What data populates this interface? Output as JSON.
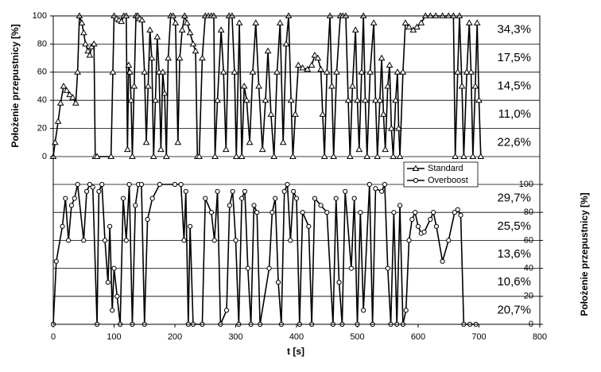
{
  "chart_data": [
    {
      "type": "line",
      "ylabel": "Położenie przepustnicy [%]",
      "ylim": [
        0,
        100
      ],
      "yticks": [
        0,
        20,
        40,
        60,
        80,
        100
      ],
      "xlim": [
        0,
        800
      ],
      "grid": true,
      "annotations": [
        "34,3%",
        "17,5%",
        "14,5%",
        "11,0%",
        "22,6%"
      ],
      "series": [
        {
          "name": "Standard",
          "color": "#000000",
          "marker": "triangle",
          "x": [
            0,
            3,
            8,
            12,
            17,
            22,
            27,
            32,
            37,
            40,
            43,
            47,
            50,
            53,
            57,
            60,
            63,
            67,
            69,
            72,
            95,
            98,
            100,
            104,
            108,
            112,
            116,
            120,
            122,
            124,
            126,
            128,
            130,
            133,
            136,
            139,
            142,
            146,
            150,
            153,
            156,
            159,
            162,
            165,
            168,
            171,
            174,
            177,
            180,
            183,
            186,
            189,
            193,
            197,
            201,
            205,
            208,
            212,
            216,
            220,
            225,
            230,
            234,
            237,
            240,
            245,
            250,
            255,
            260,
            264,
            266,
            270,
            276,
            280,
            284,
            289,
            294,
            298,
            301,
            306,
            310,
            314,
            318,
            323,
            328,
            333,
            338,
            344,
            349,
            353,
            358,
            363,
            368,
            373,
            378,
            383,
            387,
            391,
            394,
            398,
            403,
            410,
            418,
            425,
            430,
            435,
            440,
            443,
            446,
            450,
            455,
            458,
            461,
            466,
            472,
            476,
            481,
            485,
            488,
            492,
            497,
            500,
            503,
            507,
            510,
            513,
            516,
            521,
            527,
            530,
            533,
            537,
            540,
            543,
            546,
            550,
            553,
            556,
            559,
            563,
            566,
            568,
            570,
            575,
            579,
            585,
            592,
            598,
            605,
            612,
            620,
            629,
            640,
            650,
            658,
            661,
            665,
            668,
            672,
            675,
            680,
            684,
            687,
            690,
            694,
            697,
            700,
            703
          ],
          "values": [
            0,
            10,
            25,
            38,
            50,
            47,
            44,
            42,
            38,
            60,
            100,
            95,
            88,
            80,
            75,
            72,
            78,
            80,
            0,
            0,
            0,
            60,
            100,
            98,
            97,
            96,
            100,
            100,
            5,
            65,
            60,
            40,
            0,
            50,
            100,
            100,
            98,
            97,
            60,
            10,
            50,
            90,
            70,
            0,
            40,
            85,
            60,
            5,
            60,
            45,
            0,
            70,
            100,
            100,
            95,
            10,
            70,
            90,
            100,
            95,
            88,
            80,
            75,
            0,
            0,
            70,
            100,
            100,
            100,
            100,
            0,
            40,
            90,
            60,
            5,
            100,
            100,
            60,
            0,
            95,
            0,
            50,
            40,
            10,
            60,
            95,
            50,
            5,
            40,
            75,
            30,
            0,
            60,
            95,
            10,
            80,
            100,
            40,
            0,
            30,
            65,
            63,
            62,
            65,
            72,
            70,
            62,
            30,
            0,
            60,
            100,
            50,
            0,
            60,
            100,
            100,
            100,
            40,
            0,
            50,
            90,
            40,
            5,
            60,
            100,
            40,
            0,
            60,
            95,
            40,
            0,
            40,
            70,
            30,
            5,
            50,
            65,
            20,
            0,
            40,
            60,
            20,
            0,
            60,
            95,
            92,
            90,
            92,
            95,
            100,
            100,
            100,
            100,
            100,
            100,
            0,
            60,
            100,
            50,
            0,
            60,
            95,
            60,
            0,
            50,
            95,
            40,
            0
          ]
        }
      ]
    },
    {
      "type": "line",
      "ylabel": "Położenie przepustnicy [%]",
      "ylim": [
        0,
        100
      ],
      "yticks": [
        0,
        20,
        40,
        60,
        80,
        100
      ],
      "xlabel": "t [s]",
      "xlim": [
        0,
        800
      ],
      "xticks": [
        0,
        100,
        200,
        300,
        400,
        500,
        600,
        700,
        800
      ],
      "grid": true,
      "legend": "upper right",
      "annotations": [
        "29,7%",
        "25,5%",
        "13,6%",
        "10,6%",
        "20,7%"
      ],
      "series": [
        {
          "name": "Overboost",
          "color": "#000000",
          "marker": "circle",
          "x": [
            0,
            5,
            15,
            20,
            25,
            30,
            35,
            40,
            50,
            55,
            60,
            65,
            72,
            75,
            80,
            85,
            90,
            93,
            97,
            100,
            105,
            110,
            115,
            120,
            125,
            130,
            135,
            140,
            145,
            150,
            155,
            163,
            175,
            200,
            210,
            215,
            218,
            222,
            225,
            230,
            245,
            250,
            260,
            265,
            270,
            275,
            285,
            290,
            295,
            300,
            305,
            310,
            315,
            320,
            325,
            330,
            335,
            340,
            355,
            360,
            365,
            370,
            375,
            380,
            385,
            390,
            395,
            400,
            405,
            410,
            420,
            425,
            430,
            440,
            450,
            460,
            465,
            470,
            475,
            480,
            490,
            495,
            500,
            505,
            510,
            520,
            525,
            530,
            540,
            545,
            550,
            555,
            560,
            565,
            570,
            575,
            580,
            585,
            590,
            595,
            600,
            605,
            610,
            620,
            625,
            630,
            640,
            650,
            660,
            665,
            670,
            675,
            685,
            695
          ],
          "values": [
            0,
            45,
            70,
            90,
            60,
            85,
            90,
            100,
            60,
            95,
            100,
            98,
            0,
            95,
            100,
            60,
            30,
            70,
            10,
            40,
            20,
            0,
            90,
            60,
            100,
            0,
            85,
            100,
            100,
            0,
            75,
            90,
            100,
            100,
            100,
            60,
            95,
            0,
            70,
            0,
            0,
            90,
            80,
            60,
            95,
            0,
            10,
            85,
            95,
            60,
            0,
            90,
            95,
            40,
            0,
            85,
            80,
            0,
            40,
            80,
            90,
            30,
            0,
            95,
            100,
            60,
            95,
            90,
            0,
            80,
            70,
            0,
            90,
            85,
            80,
            0,
            90,
            30,
            0,
            95,
            40,
            90,
            0,
            80,
            10,
            100,
            0,
            97,
            95,
            100,
            40,
            0,
            80,
            0,
            85,
            0,
            10,
            60,
            75,
            80,
            70,
            65,
            66,
            75,
            80,
            70,
            45,
            60,
            80,
            82,
            78,
            0,
            0,
            0
          ]
        }
      ]
    }
  ]
}
